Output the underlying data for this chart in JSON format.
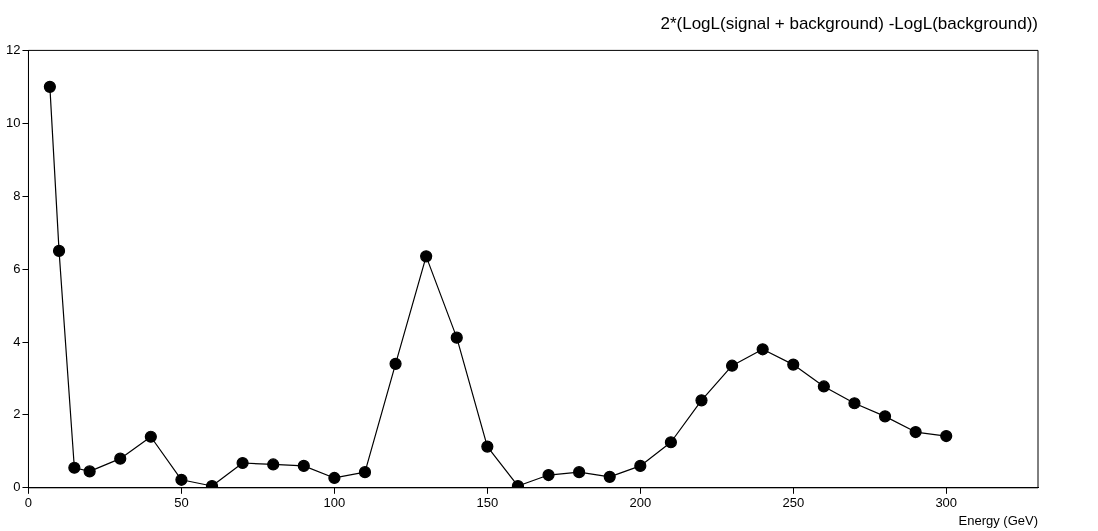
{
  "chart_data": {
    "type": "line",
    "title": "2*(LogL(signal + background) -LogL(background))",
    "xlabel": "Energy (GeV)",
    "x": [
      7,
      10,
      15,
      20,
      30,
      40,
      50,
      60,
      70,
      80,
      90,
      100,
      110,
      120,
      130,
      140,
      150,
      160,
      170,
      180,
      190,
      200,
      210,
      220,
      230,
      240,
      250,
      260,
      270,
      280,
      290,
      300
    ],
    "series": [
      {
        "color": "#000000",
        "values": [
          11.0,
          6.5,
          0.55,
          0.45,
          0.8,
          1.4,
          0.22,
          0.05,
          0.68,
          0.64,
          0.6,
          0.27,
          0.43,
          3.4,
          6.35,
          4.12,
          1.13,
          0.05,
          0.35,
          0.43,
          0.3,
          0.6,
          1.25,
          2.4,
          3.35,
          3.8,
          3.38,
          2.78,
          2.32,
          1.96,
          1.53,
          1.42
        ]
      }
    ],
    "xlim": [
      0,
      330
    ],
    "xticks": [
      0,
      50,
      100,
      150,
      200,
      250,
      300
    ],
    "ylim": [
      0,
      12
    ],
    "yticks": [
      0,
      2,
      4,
      6,
      8,
      10,
      12
    ],
    "grid": false,
    "legend": false,
    "marker": "circle",
    "line_style": "solid"
  }
}
